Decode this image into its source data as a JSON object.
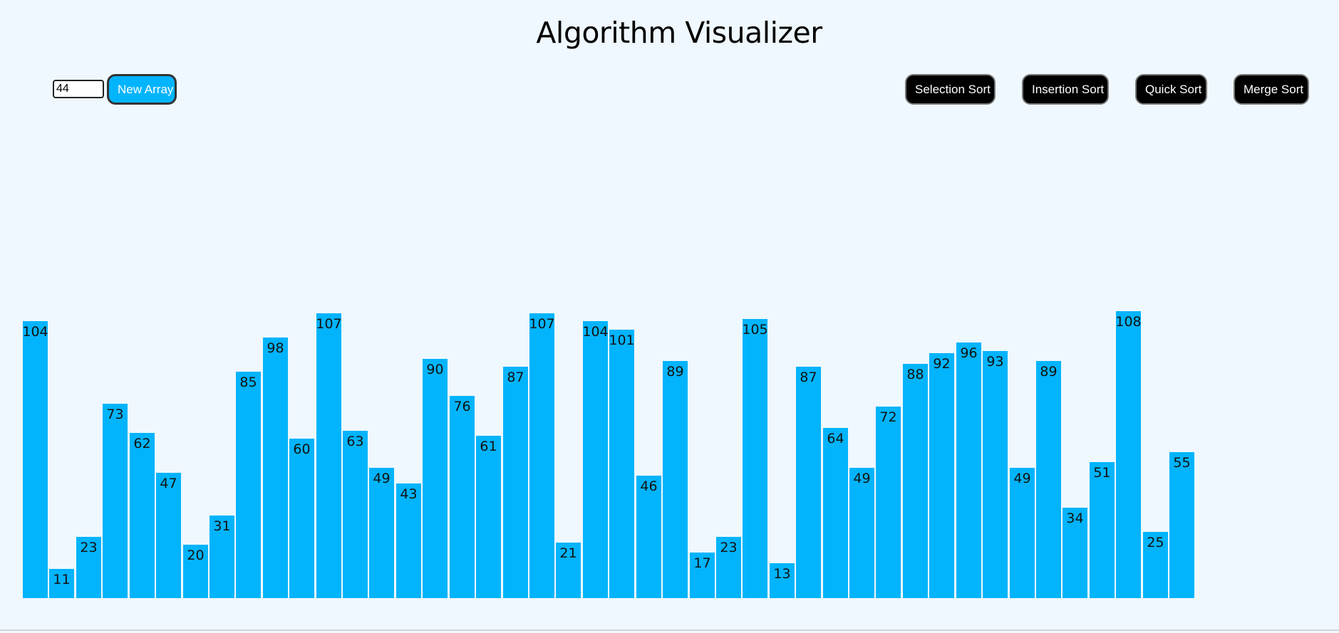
{
  "page": {
    "title": "Algorithm Visualizer"
  },
  "controls": {
    "size_value": "44",
    "new_array_label": "New Array",
    "algorithms": [
      {
        "id": "selection-sort",
        "label": "Selection Sort"
      },
      {
        "id": "insertion-sort",
        "label": "Insertion Sort"
      },
      {
        "id": "quick-sort",
        "label": "Quick Sort"
      },
      {
        "id": "merge-sort",
        "label": "Merge Sort"
      }
    ]
  },
  "colors": {
    "background": "#eff8fe",
    "bar": "#02b4fc",
    "primary_button": "#02b4fc",
    "algo_button": "#000000"
  },
  "chart_data": {
    "type": "bar",
    "values": [
      104,
      11,
      23,
      73,
      62,
      47,
      20,
      31,
      85,
      98,
      60,
      107,
      63,
      49,
      43,
      90,
      76,
      61,
      87,
      107,
      21,
      104,
      101,
      46,
      89,
      17,
      23,
      105,
      13,
      87,
      64,
      49,
      72,
      88,
      92,
      96,
      93,
      49,
      89,
      34,
      51,
      108,
      25,
      55
    ],
    "labels_shown": true
  }
}
